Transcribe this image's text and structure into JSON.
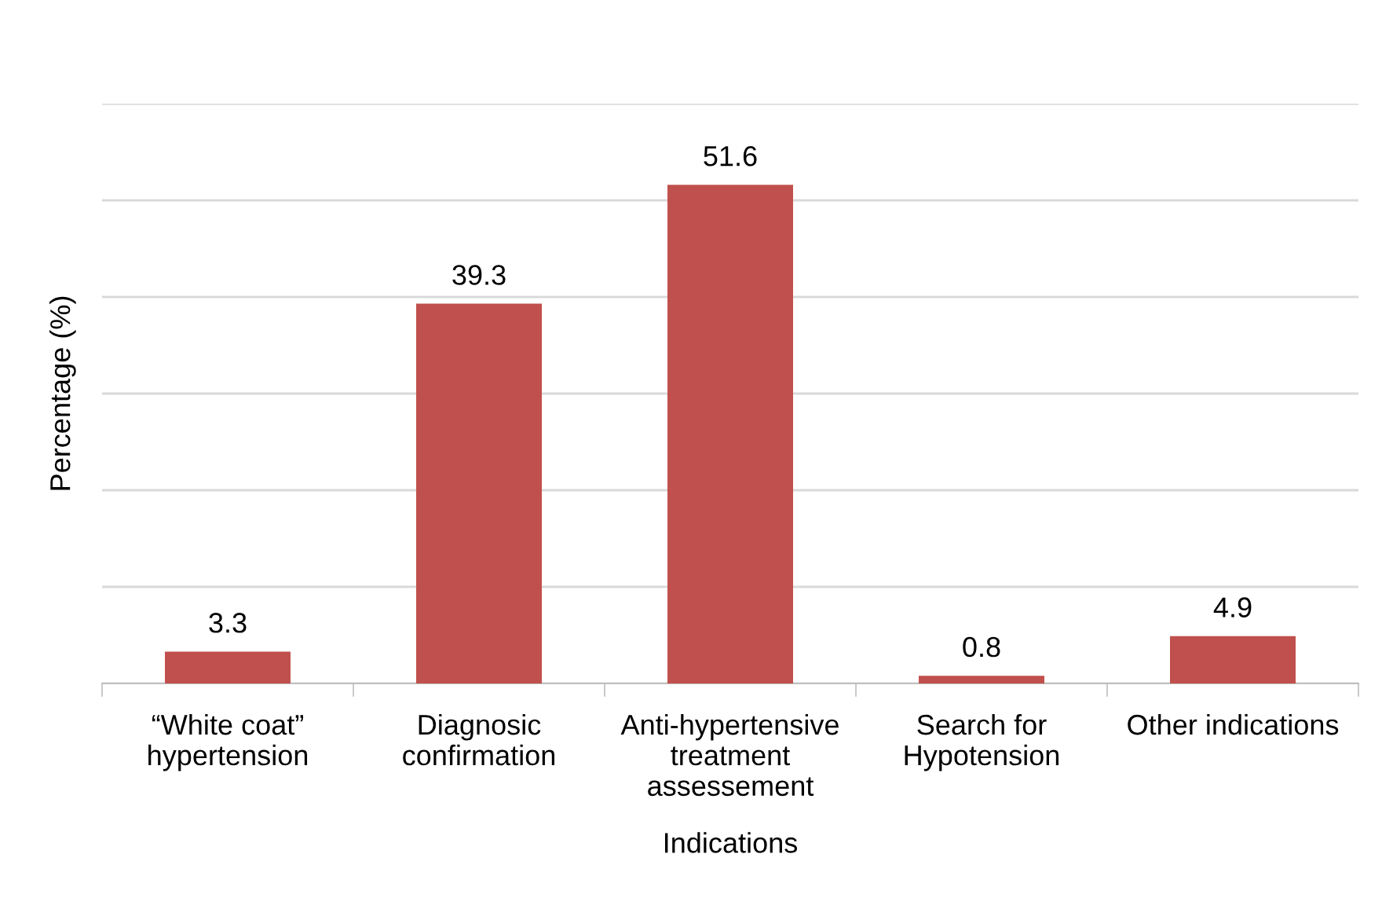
{
  "chart_data": {
    "type": "bar",
    "xlabel": "Indications",
    "ylabel": "Percentage (%)",
    "categories": [
      "“White coat”\nhypertension",
      "Diagnosic\nconfirmation",
      "Anti-hypertensive\ntreatment\nassessement",
      "Search for\nHypotension",
      "Other indications"
    ],
    "values": [
      3.3,
      39.3,
      51.6,
      0.8,
      4.9
    ],
    "color": "#c0504d",
    "data_labels": true,
    "ylim": [
      0,
      60
    ],
    "yticks": [
      {
        "value": 0,
        "label": null
      },
      {
        "value": 10,
        "label": null
      },
      {
        "value": 20,
        "label": null
      },
      {
        "value": 30,
        "label": null
      },
      {
        "value": 40,
        "label": null
      },
      {
        "value": 50,
        "label": null
      },
      {
        "value": 60,
        "label": null
      }
    ],
    "grid": "y",
    "tick_labels": "x"
  }
}
